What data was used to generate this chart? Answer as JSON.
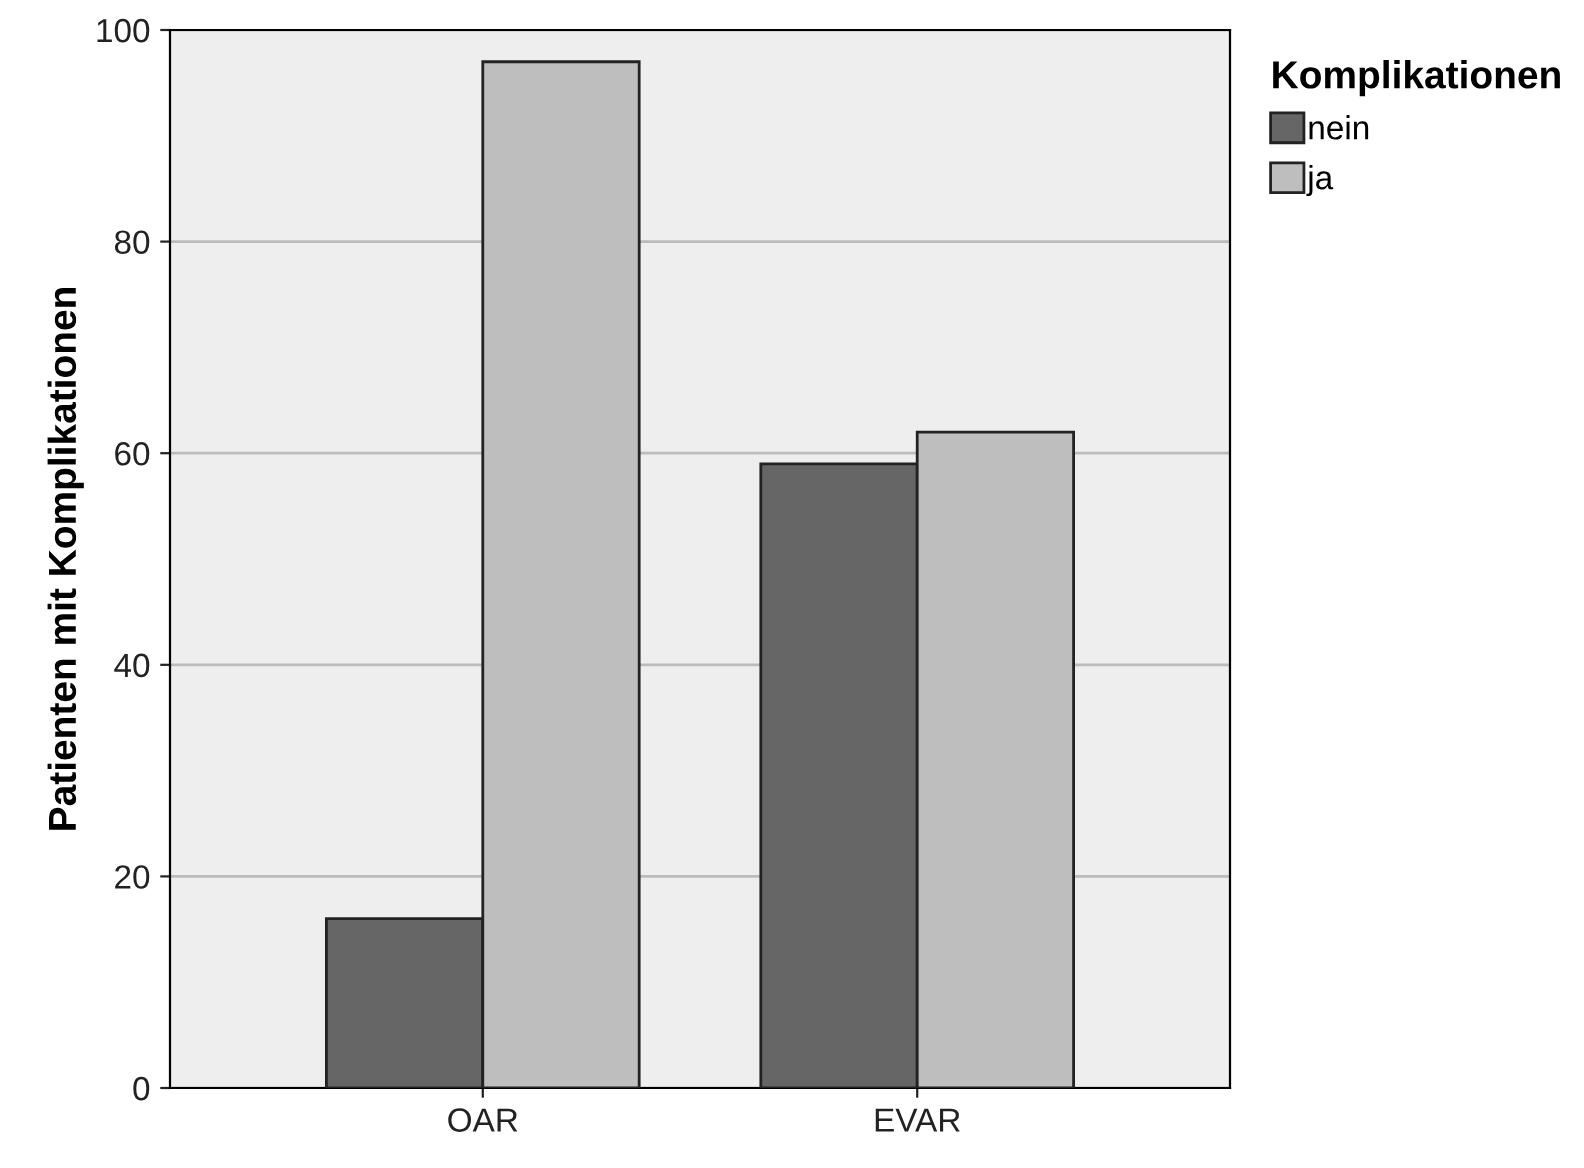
{
  "chart_data": {
    "type": "bar",
    "ylabel": "Patienten mit Komplikationen",
    "legend_title": "Komplikationen",
    "categories": [
      "OAR",
      "EVAR"
    ],
    "series": [
      {
        "name": "nein",
        "color": "#666666",
        "values": [
          16,
          59
        ]
      },
      {
        "name": "ja",
        "color": "#bebebe",
        "values": [
          97,
          62
        ]
      }
    ],
    "ylim": [
      0,
      100
    ],
    "yticks": [
      0,
      20,
      40,
      60,
      80,
      100
    ],
    "grid": "y",
    "legend": "top right"
  }
}
